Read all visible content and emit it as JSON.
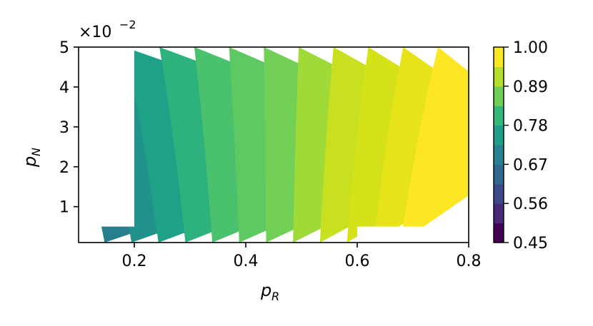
{
  "chart_data": {
    "type": "heatmap",
    "subtype": "filled-contour",
    "xlabel": "p",
    "xlabel_sub": "R",
    "ylabel": "p",
    "ylabel_sub": "N",
    "xlim": [
      0.1,
      0.8
    ],
    "ylim": [
      0.001,
      0.05
    ],
    "x_ticks": [
      0.2,
      0.4,
      0.6,
      0.8
    ],
    "x_tick_labels": [
      "0.2",
      "0.4",
      "0.6",
      "0.8"
    ],
    "y_ticks": [
      0.01,
      0.02,
      0.03,
      0.04,
      0.05
    ],
    "y_tick_labels": [
      "1",
      "2",
      "3",
      "4",
      "5"
    ],
    "y_scale_label": "×10",
    "y_scale_exponent": "−2",
    "colormap": "viridis",
    "colorbar": {
      "min": 0.45,
      "max": 1.0,
      "ticks": [
        1.0,
        0.89,
        0.78,
        0.67,
        0.56,
        0.45
      ],
      "tick_labels": [
        "1.00",
        "0.89",
        "0.78",
        "0.67",
        "0.56",
        "0.45"
      ]
    },
    "contour_levels": [
      0.665,
      0.69,
      0.715,
      0.74,
      0.765,
      0.79,
      0.815,
      0.84,
      0.865,
      0.89,
      0.915,
      0.94,
      0.965
    ],
    "level_colors": [
      "#277f8e",
      "#21918c",
      "#1fa187",
      "#2db27d",
      "#4ac16d",
      "#5ec962",
      "#73d056",
      "#a0da39",
      "#c8e020",
      "#d5e21a",
      "#e6e419",
      "#fde725"
    ],
    "masked_regions": [
      {
        "x": [
          0.1,
          0.2
        ],
        "y": [
          0.005,
          0.05
        ]
      },
      {
        "x": [
          0.6,
          0.8
        ],
        "y": [
          0.001,
          0.005
        ]
      }
    ],
    "grid": false,
    "colorbar_position": "right"
  }
}
